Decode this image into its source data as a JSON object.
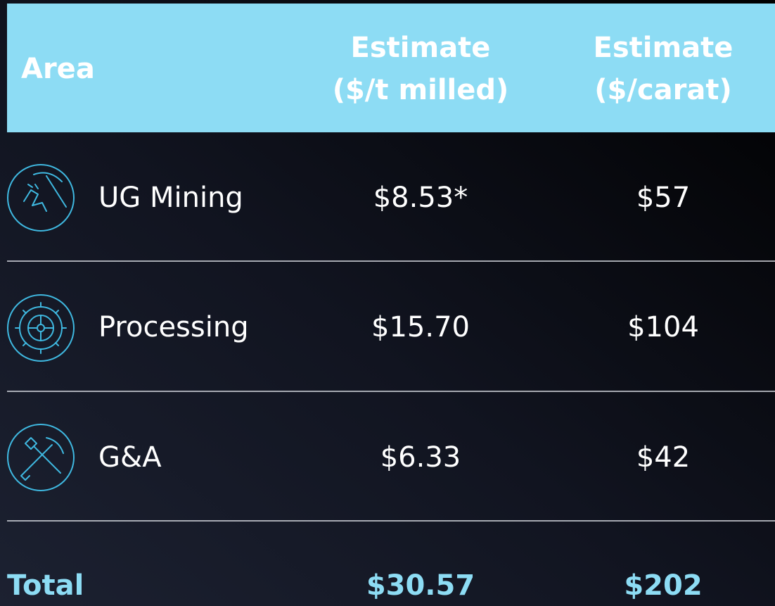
{
  "table": {
    "header": {
      "area": "Area",
      "col1": [
        "Estimate",
        "($/t milled)"
      ],
      "col2": [
        "Estimate",
        "($/carat)"
      ]
    },
    "rows": [
      [
        "UG Mining",
        "$8.53*",
        "$57"
      ],
      [
        "Processing",
        "$15.70",
        "$104"
      ],
      [
        "G&A",
        "$6.33",
        "$42"
      ]
    ],
    "total": [
      "Total",
      "$30.57",
      "$202"
    ]
  }
}
